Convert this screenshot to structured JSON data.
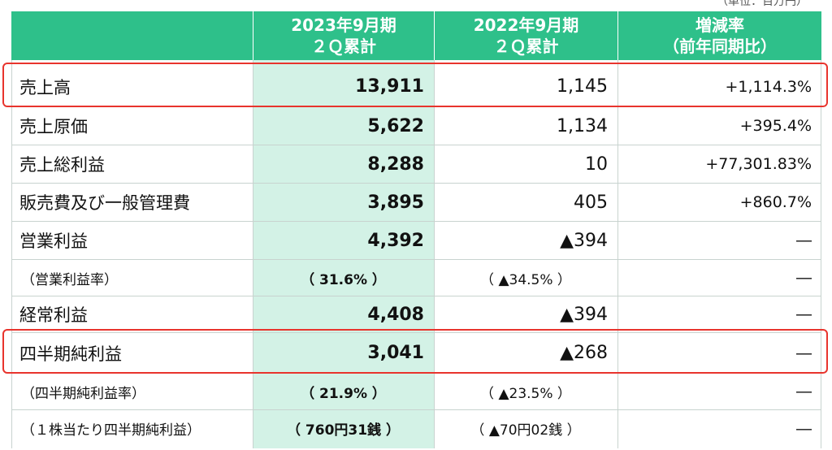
{
  "unit_note": "（単位：百万円）",
  "header": {
    "col1_line1": "2023年9月期",
    "col1_line2": "２Ｑ累計",
    "col2_line1": "2022年9月期",
    "col2_line2": "２Ｑ累計",
    "col3_line1": "増減率",
    "col3_line2": "（前年同期比）"
  },
  "rows": [
    {
      "label": "売上高",
      "current": "13,911",
      "prior": "1,145",
      "change": "+1,114.3%"
    },
    {
      "label": "売上原価",
      "current": "5,622",
      "prior": "1,134",
      "change": "+395.4%"
    },
    {
      "label": "売上総利益",
      "current": "8,288",
      "prior": "10",
      "change": "+77,301.83%"
    },
    {
      "label": "販売費及び一般管理費",
      "current": "3,895",
      "prior": "405",
      "change": "+860.7%"
    },
    {
      "label": "営業利益",
      "current": "4,392",
      "prior": "▲394",
      "change": "―"
    },
    {
      "label": "（営業利益率）",
      "current": "（ 31.6% ）",
      "prior": "（ ▲34.5% ）",
      "change": "―"
    },
    {
      "label": "経常利益",
      "current": "4,408",
      "prior": "▲394",
      "change": "―"
    },
    {
      "label": "四半期純利益",
      "current": "3,041",
      "prior": "▲268",
      "change": "―"
    },
    {
      "label": "（四半期純利益率）",
      "current": "（ 21.9% ）",
      "prior": "（ ▲23.5% ）",
      "change": "―"
    },
    {
      "label": "（１株当たり四半期純利益）",
      "current": "（ 760円31銭 ）",
      "prior": "（ ▲70円02銭 ）",
      "change": "―"
    }
  ],
  "highlight_color": "#e8342d",
  "header_color": "#2ec08a",
  "column_highlight_color": "#d3f2e6"
}
